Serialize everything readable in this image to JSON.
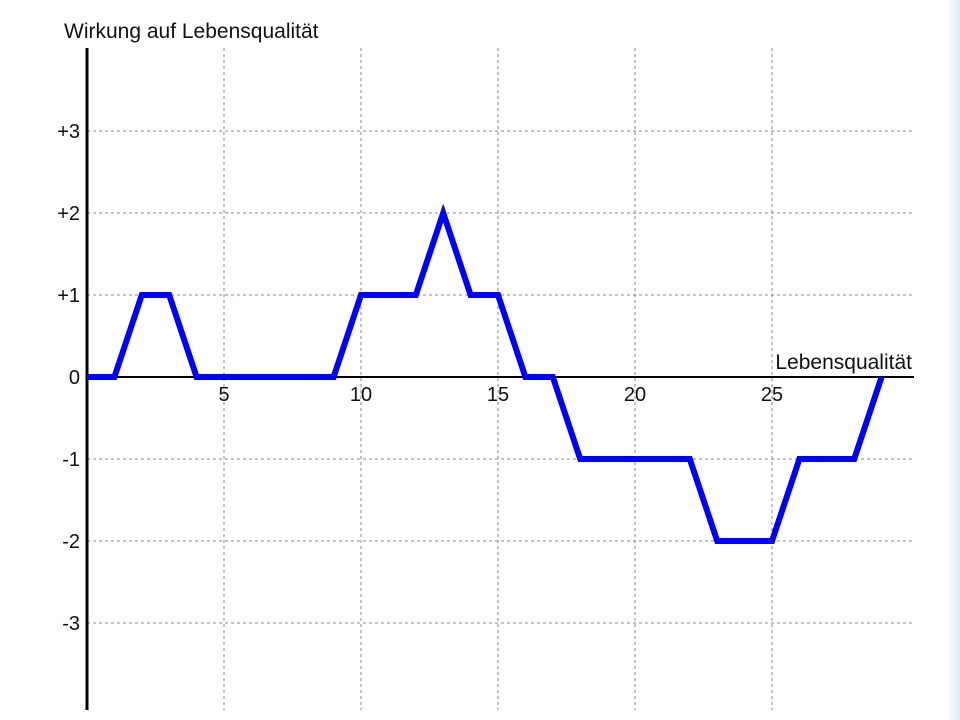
{
  "chart_data": {
    "type": "line",
    "ylabel": "Wirkung auf Lebensqualität",
    "xlabel": "Lebensqualität",
    "xlim": [
      0,
      30
    ],
    "ylim": [
      -4,
      4
    ],
    "x_ticks": [
      5,
      10,
      15,
      20,
      25
    ],
    "x_tick_labels": [
      "5",
      "10",
      "15",
      "20",
      "25"
    ],
    "y_ticks": [
      3,
      2,
      1,
      0,
      -1,
      -2,
      -3
    ],
    "y_tick_labels": [
      "+3",
      "+2",
      "+1",
      "0",
      "-1",
      "-2",
      "-3"
    ],
    "grid": true,
    "series": [
      {
        "color": "#0000ff",
        "x": [
          0,
          1,
          2,
          3,
          4,
          9,
          10,
          12,
          13,
          14,
          15,
          16,
          17,
          18,
          22,
          23,
          25,
          26,
          28,
          29
        ],
        "y": [
          0,
          0,
          1,
          1,
          0,
          0,
          1,
          1,
          2,
          1,
          1,
          0,
          0,
          -1,
          -1,
          -2,
          -2,
          -1,
          -1,
          0
        ]
      }
    ]
  },
  "colors": {
    "line": "#0000ff",
    "grid": "#7d8ba6",
    "axis": "#000000"
  }
}
